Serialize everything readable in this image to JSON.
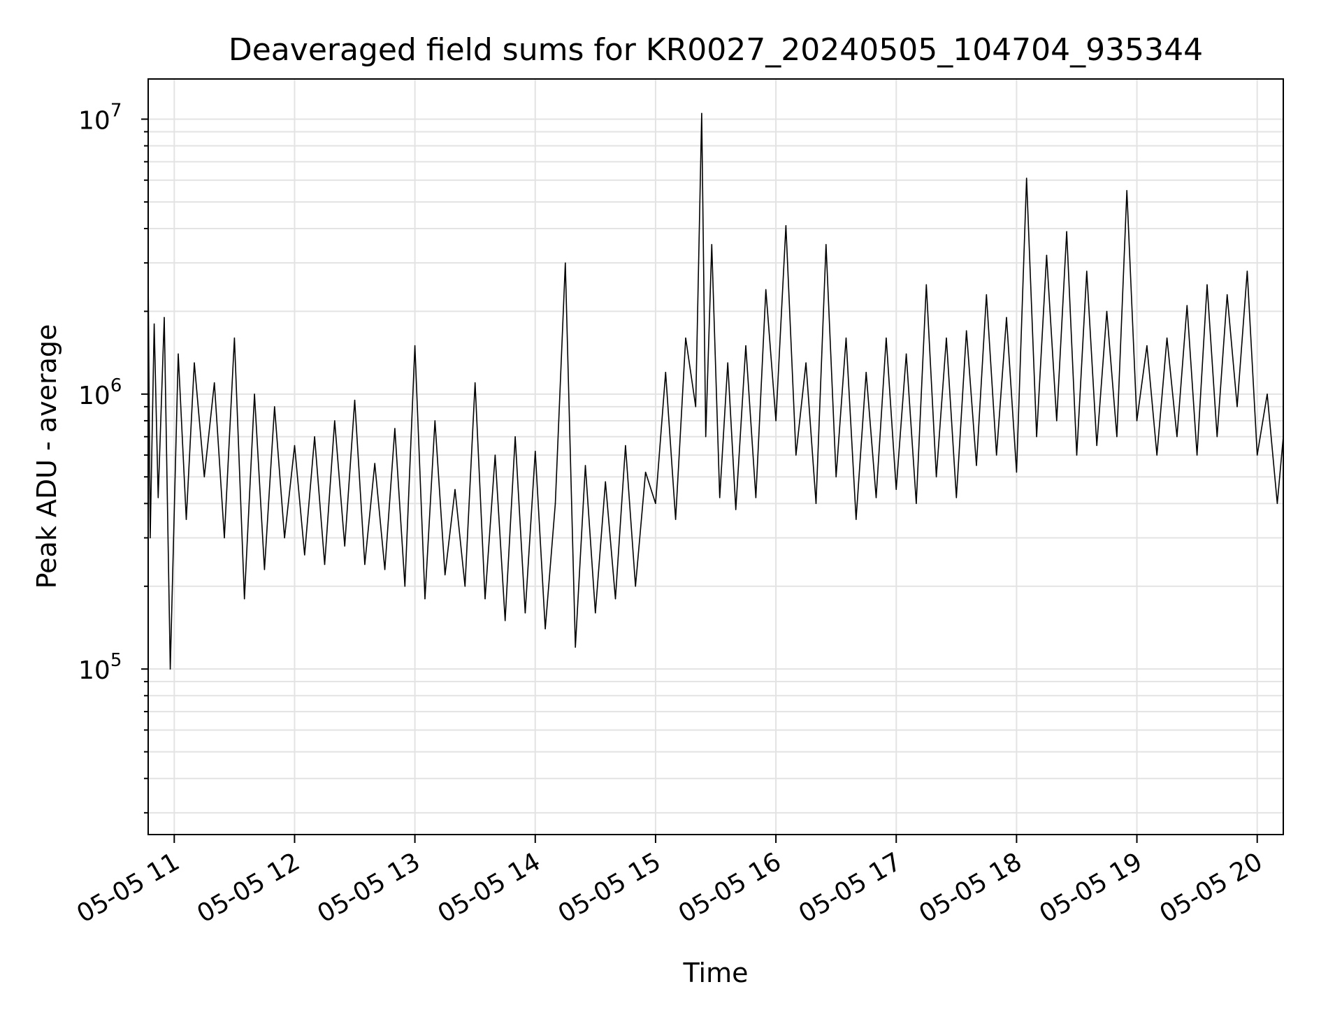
{
  "chart_data": {
    "type": "line",
    "title": "Deaveraged field sums for KR0027_20240505_104704_935344",
    "xlabel": "Time",
    "ylabel": "Peak ADU - average",
    "yscale": "log",
    "ylim": [
      25000,
      14000000
    ],
    "xlim": [
      "2024-05-05 10:47",
      "2024-05-05 20:13"
    ],
    "grid": true,
    "x_ticks": [
      {
        "label": "05-05 11",
        "t": "2024-05-05 11:00"
      },
      {
        "label": "05-05 12",
        "t": "2024-05-05 12:00"
      },
      {
        "label": "05-05 13",
        "t": "2024-05-05 13:00"
      },
      {
        "label": "05-05 14",
        "t": "2024-05-05 14:00"
      },
      {
        "label": "05-05 15",
        "t": "2024-05-05 15:00"
      },
      {
        "label": "05-05 16",
        "t": "2024-05-05 16:00"
      },
      {
        "label": "05-05 17",
        "t": "2024-05-05 17:00"
      },
      {
        "label": "05-05 18",
        "t": "2024-05-05 18:00"
      },
      {
        "label": "05-05 19",
        "t": "2024-05-05 19:00"
      },
      {
        "label": "05-05 20",
        "t": "2024-05-05 20:00"
      }
    ],
    "y_ticks": [
      {
        "base": "10",
        "exp": "5",
        "value": 100000
      },
      {
        "base": "10",
        "exp": "6",
        "value": 1000000
      },
      {
        "base": "10",
        "exp": "7",
        "value": 10000000
      }
    ],
    "series": [
      {
        "color": "#000000",
        "x": [
          "10:47",
          "10:48",
          "10:50",
          "10:52",
          "10:55",
          "10:58",
          "11:02",
          "11:06",
          "11:10",
          "11:15",
          "11:20",
          "11:25",
          "11:30",
          "11:35",
          "11:40",
          "11:45",
          "11:50",
          "11:55",
          "12:00",
          "12:05",
          "12:10",
          "12:15",
          "12:20",
          "12:25",
          "12:30",
          "12:35",
          "12:40",
          "12:45",
          "12:50",
          "12:55",
          "13:00",
          "13:05",
          "13:10",
          "13:15",
          "13:20",
          "13:25",
          "13:30",
          "13:35",
          "13:40",
          "13:45",
          "13:50",
          "13:55",
          "14:00",
          "14:05",
          "14:10",
          "14:15",
          "14:20",
          "14:25",
          "14:30",
          "14:35",
          "14:40",
          "14:45",
          "14:50",
          "14:55",
          "15:00",
          "15:05",
          "15:10",
          "15:15",
          "15:20",
          "15:23",
          "15:25",
          "15:28",
          "15:32",
          "15:36",
          "15:40",
          "15:45",
          "15:50",
          "15:55",
          "16:00",
          "16:05",
          "16:10",
          "16:15",
          "16:20",
          "16:25",
          "16:30",
          "16:35",
          "16:40",
          "16:45",
          "16:50",
          "16:55",
          "17:00",
          "17:05",
          "17:10",
          "17:15",
          "17:20",
          "17:25",
          "17:30",
          "17:35",
          "17:40",
          "17:45",
          "17:50",
          "17:55",
          "18:00",
          "18:05",
          "18:10",
          "18:15",
          "18:20",
          "18:25",
          "18:30",
          "18:35",
          "18:40",
          "18:45",
          "18:50",
          "18:55",
          "19:00",
          "19:05",
          "19:10",
          "19:15",
          "19:20",
          "19:25",
          "19:30",
          "19:35",
          "19:40",
          "19:45",
          "19:50",
          "19:55",
          "20:00",
          "20:05",
          "20:10",
          "20:13"
        ],
        "values": [
          2700000,
          300000,
          1800000,
          420000,
          1900000,
          100000,
          1400000,
          350000,
          1300000,
          500000,
          1100000,
          300000,
          1600000,
          180000,
          1000000,
          230000,
          900000,
          300000,
          650000,
          260000,
          700000,
          240000,
          800000,
          280000,
          950000,
          240000,
          560000,
          230000,
          750000,
          200000,
          1500000,
          180000,
          800000,
          220000,
          450000,
          200000,
          1100000,
          180000,
          600000,
          150000,
          700000,
          160000,
          620000,
          140000,
          400000,
          3000000,
          120000,
          550000,
          160000,
          480000,
          180000,
          650000,
          200000,
          520000,
          400000,
          1200000,
          350000,
          1600000,
          900000,
          10500000,
          700000,
          3500000,
          420000,
          1300000,
          380000,
          1500000,
          420000,
          2400000,
          800000,
          4100000,
          600000,
          1300000,
          400000,
          3500000,
          500000,
          1600000,
          350000,
          1200000,
          420000,
          1600000,
          450000,
          1400000,
          400000,
          2500000,
          500000,
          1600000,
          420000,
          1700000,
          550000,
          2300000,
          600000,
          1900000,
          520000,
          6100000,
          700000,
          3200000,
          800000,
          3900000,
          600000,
          2800000,
          650000,
          2000000,
          700000,
          5500000,
          800000,
          1500000,
          600000,
          1600000,
          700000,
          2100000,
          600000,
          2500000,
          700000,
          2300000,
          900000,
          2800000,
          600000,
          1000000,
          400000,
          700000
        ]
      }
    ]
  }
}
